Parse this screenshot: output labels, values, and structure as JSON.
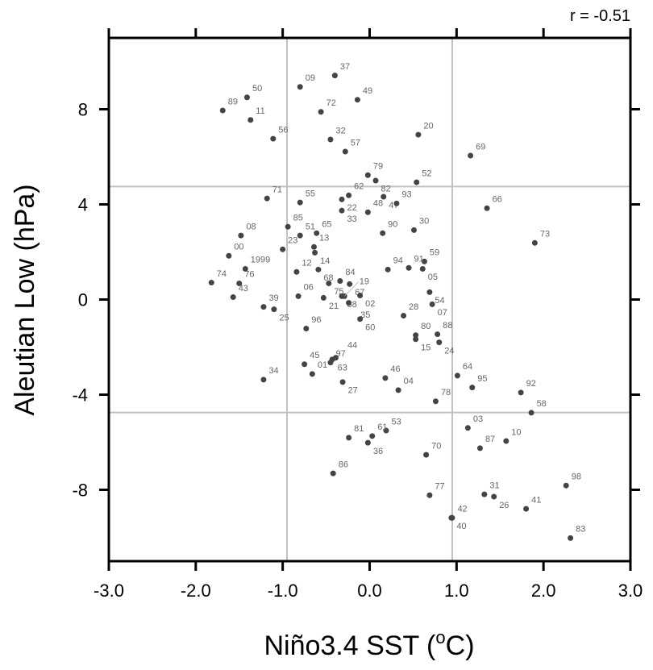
{
  "chart_data": {
    "type": "scatter",
    "title": "",
    "xlabel_prefix": "Niño3.4 SST (",
    "xlabel_sup": "o",
    "xlabel_suffix": "C)",
    "ylabel": "Aleutian Low (hPa)",
    "annotation": "r = -0.51",
    "xlim": [
      -3.0,
      3.0
    ],
    "ylim": [
      -11,
      11
    ],
    "xticks": [
      -3.0,
      -2.0,
      -1.0,
      0.0,
      1.0,
      2.0,
      3.0
    ],
    "xtick_labels": [
      "-3.0",
      "-2.0",
      "-1.0",
      "0.0",
      "1.0",
      "2.0",
      "3.0"
    ],
    "yticks": [
      8,
      4,
      0,
      -4,
      -8
    ],
    "ytick_labels": [
      "8",
      "4",
      "0",
      "-4",
      "-8"
    ],
    "reference_lines": {
      "x": [
        -0.95,
        0.95
      ],
      "y": [
        4.75,
        -4.75
      ]
    },
    "grid": false,
    "colors": {
      "point": "#444444",
      "label": "#666666",
      "refline": "#c0c0c0"
    },
    "points": [
      {
        "label": "37",
        "x": -0.4,
        "y": 9.42
      },
      {
        "label": "09",
        "x": -0.8,
        "y": 8.94
      },
      {
        "label": "50",
        "x": -1.41,
        "y": 8.5
      },
      {
        "label": "49",
        "x": -0.14,
        "y": 8.4
      },
      {
        "label": "89",
        "x": -1.69,
        "y": 7.95
      },
      {
        "label": "72",
        "x": -0.56,
        "y": 7.89
      },
      {
        "label": "11",
        "x": -1.37,
        "y": 7.55
      },
      {
        "label": "20",
        "x": 0.56,
        "y": 6.93
      },
      {
        "label": "56",
        "x": -1.11,
        "y": 6.76
      },
      {
        "label": "32",
        "x": -0.45,
        "y": 6.73
      },
      {
        "label": "57",
        "x": -0.28,
        "y": 6.22
      },
      {
        "label": "69",
        "x": 1.16,
        "y": 6.05
      },
      {
        "label": "79",
        "x": -0.02,
        "y": 5.23
      },
      {
        "label": "82",
        "x": 0.07,
        "y": 5.0
      },
      {
        "label": "52",
        "x": 0.54,
        "y": 4.93
      },
      {
        "label": "62",
        "x": -0.24,
        "y": 4.38
      },
      {
        "label": "22",
        "x": -0.32,
        "y": 4.21
      },
      {
        "label": "33",
        "x": -0.32,
        "y": 3.74
      },
      {
        "label": "47",
        "x": 0.16,
        "y": 4.32
      },
      {
        "label": "93",
        "x": 0.31,
        "y": 4.04
      },
      {
        "label": "48",
        "x": -0.02,
        "y": 3.67
      },
      {
        "label": "66",
        "x": 1.35,
        "y": 3.84
      },
      {
        "label": "71",
        "x": -1.18,
        "y": 4.25
      },
      {
        "label": "55",
        "x": -0.8,
        "y": 4.08
      },
      {
        "label": "85",
        "x": -0.94,
        "y": 3.06
      },
      {
        "label": "51",
        "x": -0.8,
        "y": 2.69
      },
      {
        "label": "65",
        "x": -0.61,
        "y": 2.79
      },
      {
        "label": "08",
        "x": -1.48,
        "y": 2.69
      },
      {
        "label": "13",
        "x": -0.64,
        "y": 2.21
      },
      {
        "label": "14",
        "x": -0.63,
        "y": 1.97
      },
      {
        "label": "23",
        "x": -1.0,
        "y": 2.11
      },
      {
        "label": "90",
        "x": 0.15,
        "y": 2.79
      },
      {
        "label": "30",
        "x": 0.51,
        "y": 2.92
      },
      {
        "label": "73",
        "x": 1.9,
        "y": 2.38
      },
      {
        "label": "00",
        "x": -1.62,
        "y": 1.84
      },
      {
        "label": "1999",
        "x": -1.43,
        "y": 1.29
      },
      {
        "label": "12",
        "x": -0.84,
        "y": 1.16
      },
      {
        "label": "68",
        "x": -0.59,
        "y": 1.26
      },
      {
        "label": "59",
        "x": 0.63,
        "y": 1.6
      },
      {
        "label": "91",
        "x": 0.45,
        "y": 1.33
      },
      {
        "label": "05",
        "x": 0.61,
        "y": 1.29
      },
      {
        "label": "94",
        "x": 0.21,
        "y": 1.26
      },
      {
        "label": "74",
        "x": -1.82,
        "y": 0.71
      },
      {
        "label": "76",
        "x": -1.5,
        "y": 0.68
      },
      {
        "label": "75",
        "x": -0.47,
        "y": 0.68
      },
      {
        "label": "84",
        "x": -0.34,
        "y": 0.78
      },
      {
        "label": "67",
        "x": -0.23,
        "y": 0.65
      },
      {
        "label": "43",
        "x": -1.57,
        "y": 0.1
      },
      {
        "label": "06",
        "x": -0.82,
        "y": 0.14
      },
      {
        "label": "21",
        "x": -0.53,
        "y": 0.07
      },
      {
        "label": "38",
        "x": -0.32,
        "y": 0.14
      },
      {
        "label": "19",
        "x": -0.29,
        "y": 0.14
      },
      {
        "label": "02",
        "x": -0.11,
        "y": 0.17
      },
      {
        "label": "35",
        "x": -0.24,
        "y": -0.14
      },
      {
        "label": "39",
        "x": -1.22,
        "y": -0.31
      },
      {
        "label": "25",
        "x": -1.1,
        "y": -0.41
      },
      {
        "label": "54",
        "x": 0.69,
        "y": 0.31
      },
      {
        "label": "07",
        "x": 0.72,
        "y": -0.2
      },
      {
        "label": "60",
        "x": -0.11,
        "y": -0.82
      },
      {
        "label": "28",
        "x": 0.39,
        "y": -0.68
      },
      {
        "label": "96",
        "x": -0.73,
        "y": -1.22
      },
      {
        "label": "80",
        "x": 0.53,
        "y": -1.5
      },
      {
        "label": "15",
        "x": 0.53,
        "y": -1.67
      },
      {
        "label": "88",
        "x": 0.78,
        "y": -1.46
      },
      {
        "label": "24",
        "x": 0.8,
        "y": -1.8
      },
      {
        "label": "45",
        "x": -0.75,
        "y": -2.72
      },
      {
        "label": "01",
        "x": -0.66,
        "y": -3.13
      },
      {
        "label": "97",
        "x": -0.45,
        "y": -2.65
      },
      {
        "label": "63",
        "x": -0.43,
        "y": -2.52
      },
      {
        "label": "44",
        "x": -0.39,
        "y": -2.45
      },
      {
        "label": "27",
        "x": -0.31,
        "y": -3.47
      },
      {
        "label": "34",
        "x": -1.22,
        "y": -3.37
      },
      {
        "label": "46",
        "x": 0.18,
        "y": -3.3
      },
      {
        "label": "04",
        "x": 0.33,
        "y": -3.81
      },
      {
        "label": "64",
        "x": 1.01,
        "y": -3.2
      },
      {
        "label": "95",
        "x": 1.18,
        "y": -3.7
      },
      {
        "label": "78",
        "x": 0.76,
        "y": -4.28
      },
      {
        "label": "92",
        "x": 1.74,
        "y": -3.91
      },
      {
        "label": "58",
        "x": 1.86,
        "y": -4.76
      },
      {
        "label": "03",
        "x": 1.13,
        "y": -5.4
      },
      {
        "label": "53",
        "x": 0.19,
        "y": -5.51
      },
      {
        "label": "81",
        "x": -0.24,
        "y": -5.81
      },
      {
        "label": "61",
        "x": 0.03,
        "y": -5.74
      },
      {
        "label": "36",
        "x": -0.02,
        "y": -6.02
      },
      {
        "label": "87",
        "x": 1.27,
        "y": -6.25
      },
      {
        "label": "10",
        "x": 1.57,
        "y": -5.95
      },
      {
        "label": "70",
        "x": 0.65,
        "y": -6.53
      },
      {
        "label": "86",
        "x": -0.42,
        "y": -7.31
      },
      {
        "label": "77",
        "x": 0.69,
        "y": -8.23
      },
      {
        "label": "31",
        "x": 1.32,
        "y": -8.19
      },
      {
        "label": "26",
        "x": 1.43,
        "y": -8.29
      },
      {
        "label": "41",
        "x": 1.8,
        "y": -8.8
      },
      {
        "label": "98",
        "x": 2.26,
        "y": -7.82
      },
      {
        "label": "42",
        "x": 0.95,
        "y": -9.18
      },
      {
        "label": "40",
        "x": 0.94,
        "y": -9.18
      },
      {
        "label": "83",
        "x": 2.31,
        "y": -10.03
      }
    ]
  }
}
